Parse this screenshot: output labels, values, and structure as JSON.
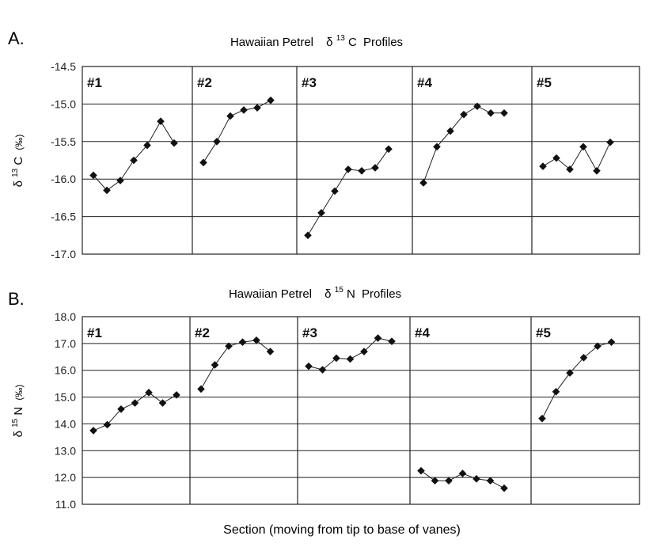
{
  "chart_data": [
    {
      "type": "line",
      "panel_letter": "A.",
      "title_prefix": "Hawaiian Petrel",
      "title_symbol": "δ",
      "title_isotope_mass": "13",
      "title_element": "C",
      "title_suffix": "Profiles",
      "ylabel_symbol": "δ",
      "ylabel_mass": "13",
      "ylabel_element": "C",
      "ylabel_unit": "(‰)",
      "ylim": [
        -17.0,
        -14.5
      ],
      "yticks": [
        "-14.5",
        "-15.0",
        "-15.5",
        "-16.0",
        "-16.5",
        "-17.0"
      ],
      "ytick_values": [
        -14.5,
        -15.0,
        -15.5,
        -16.0,
        -16.5,
        -17.0
      ],
      "grid": true,
      "series": [
        {
          "label": "#1",
          "values": [
            -15.95,
            -16.15,
            -16.02,
            -15.75,
            -15.55,
            -15.23,
            -15.52
          ]
        },
        {
          "label": "#2",
          "values": [
            -15.78,
            -15.5,
            -15.16,
            -15.08,
            -15.05,
            -14.95
          ]
        },
        {
          "label": "#3",
          "values": [
            -16.75,
            -16.45,
            -16.16,
            -15.87,
            -15.89,
            -15.85,
            -15.6
          ]
        },
        {
          "label": "#4",
          "values": [
            -16.05,
            -15.57,
            -15.36,
            -15.14,
            -15.03,
            -15.12,
            -15.12
          ]
        },
        {
          "label": "#5",
          "values": [
            -15.83,
            -15.72,
            -15.87,
            -15.57,
            -15.89,
            -15.51
          ]
        }
      ]
    },
    {
      "type": "line",
      "panel_letter": "B.",
      "title_prefix": "Hawaiian Petrel",
      "title_symbol": "δ",
      "title_isotope_mass": "15",
      "title_element": "N",
      "title_suffix": "Profiles",
      "ylabel_symbol": "δ",
      "ylabel_mass": "15",
      "ylabel_element": "N",
      "ylabel_unit": "(‰)",
      "ylim": [
        11.0,
        18.0
      ],
      "yticks": [
        "18.0",
        "17.0",
        "16.0",
        "15.0",
        "14.0",
        "13.0",
        "12.0",
        "11.0"
      ],
      "ytick_values": [
        18.0,
        17.0,
        16.0,
        15.0,
        14.0,
        13.0,
        12.0,
        11.0
      ],
      "grid": true,
      "series": [
        {
          "label": "#1",
          "values": [
            13.75,
            13.97,
            14.55,
            14.78,
            15.17,
            14.78,
            15.08
          ]
        },
        {
          "label": "#2",
          "values": [
            15.3,
            16.2,
            16.9,
            17.05,
            17.12,
            16.7
          ]
        },
        {
          "label": "#3",
          "values": [
            16.15,
            16.02,
            16.45,
            16.42,
            16.7,
            17.2,
            17.08
          ]
        },
        {
          "label": "#4",
          "values": [
            12.25,
            11.88,
            11.88,
            12.15,
            11.95,
            11.88,
            11.6
          ]
        },
        {
          "label": "#5",
          "values": [
            14.2,
            15.2,
            15.9,
            16.47,
            16.9,
            17.05
          ]
        }
      ]
    }
  ],
  "xlabel": "Section (moving from tip to base of vanes)",
  "colors": {
    "line": "#222222",
    "marker": "#111111",
    "grid": "#222222",
    "frame": "#222222"
  }
}
